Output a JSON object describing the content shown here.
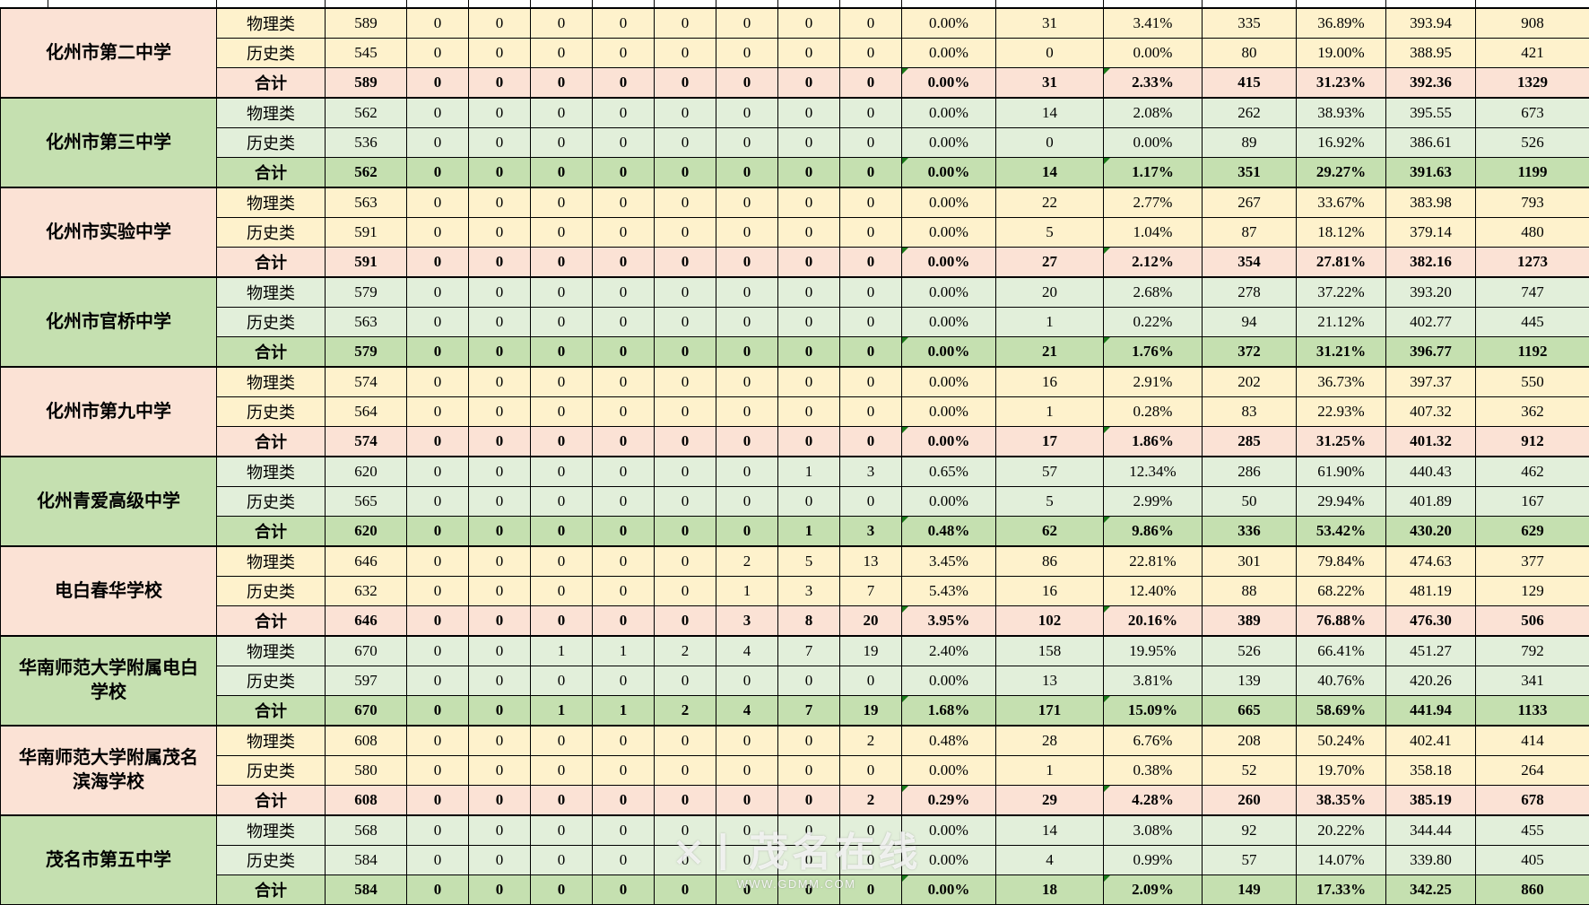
{
  "watermark": {
    "logo_mark": "✕〡",
    "logo_text": "茂名在线",
    "url_text": "WWW.GDMM.COM"
  },
  "colors": {
    "pink_band": "#FBE2D5",
    "yellow_row": "#FEF2CC",
    "green_band": "#C5E0B0",
    "green_row": "#E2EFDA",
    "flag_green": "#1a7a1a",
    "border": "#000000"
  },
  "table": {
    "schools": [
      {
        "name": "化州市第二中学",
        "theme": "pink",
        "rows": [
          {
            "category": "物理类",
            "values": [
              "589",
              "0",
              "0",
              "0",
              "0",
              "0",
              "0",
              "0",
              "0",
              "0.00%",
              "31",
              "3.41%",
              "335",
              "36.89%",
              "393.94",
              "908"
            ]
          },
          {
            "category": "历史类",
            "values": [
              "545",
              "0",
              "0",
              "0",
              "0",
              "0",
              "0",
              "0",
              "0",
              "0.00%",
              "0",
              "0.00%",
              "80",
              "19.00%",
              "388.95",
              "421"
            ]
          },
          {
            "category": "合计",
            "total": true,
            "values": [
              "589",
              "0",
              "0",
              "0",
              "0",
              "0",
              "0",
              "0",
              "0",
              "0.00%",
              "31",
              "2.33%",
              "415",
              "31.23%",
              "392.36",
              "1329"
            ]
          }
        ]
      },
      {
        "name": "化州市第三中学",
        "theme": "green",
        "rows": [
          {
            "category": "物理类",
            "values": [
              "562",
              "0",
              "0",
              "0",
              "0",
              "0",
              "0",
              "0",
              "0",
              "0.00%",
              "14",
              "2.08%",
              "262",
              "38.93%",
              "395.55",
              "673"
            ]
          },
          {
            "category": "历史类",
            "values": [
              "536",
              "0",
              "0",
              "0",
              "0",
              "0",
              "0",
              "0",
              "0",
              "0.00%",
              "0",
              "0.00%",
              "89",
              "16.92%",
              "386.61",
              "526"
            ]
          },
          {
            "category": "合计",
            "total": true,
            "values": [
              "562",
              "0",
              "0",
              "0",
              "0",
              "0",
              "0",
              "0",
              "0",
              "0.00%",
              "14",
              "1.17%",
              "351",
              "29.27%",
              "391.63",
              "1199"
            ]
          }
        ]
      },
      {
        "name": "化州市实验中学",
        "theme": "pink",
        "rows": [
          {
            "category": "物理类",
            "values": [
              "563",
              "0",
              "0",
              "0",
              "0",
              "0",
              "0",
              "0",
              "0",
              "0.00%",
              "22",
              "2.77%",
              "267",
              "33.67%",
              "383.98",
              "793"
            ]
          },
          {
            "category": "历史类",
            "values": [
              "591",
              "0",
              "0",
              "0",
              "0",
              "0",
              "0",
              "0",
              "0",
              "0.00%",
              "5",
              "1.04%",
              "87",
              "18.12%",
              "379.14",
              "480"
            ]
          },
          {
            "category": "合计",
            "total": true,
            "values": [
              "591",
              "0",
              "0",
              "0",
              "0",
              "0",
              "0",
              "0",
              "0",
              "0.00%",
              "27",
              "2.12%",
              "354",
              "27.81%",
              "382.16",
              "1273"
            ]
          }
        ]
      },
      {
        "name": "化州市官桥中学",
        "theme": "green",
        "rows": [
          {
            "category": "物理类",
            "values": [
              "579",
              "0",
              "0",
              "0",
              "0",
              "0",
              "0",
              "0",
              "0",
              "0.00%",
              "20",
              "2.68%",
              "278",
              "37.22%",
              "393.20",
              "747"
            ]
          },
          {
            "category": "历史类",
            "values": [
              "563",
              "0",
              "0",
              "0",
              "0",
              "0",
              "0",
              "0",
              "0",
              "0.00%",
              "1",
              "0.22%",
              "94",
              "21.12%",
              "402.77",
              "445"
            ]
          },
          {
            "category": "合计",
            "total": true,
            "values": [
              "579",
              "0",
              "0",
              "0",
              "0",
              "0",
              "0",
              "0",
              "0",
              "0.00%",
              "21",
              "1.76%",
              "372",
              "31.21%",
              "396.77",
              "1192"
            ]
          }
        ]
      },
      {
        "name": "化州市第九中学",
        "theme": "pink",
        "rows": [
          {
            "category": "物理类",
            "values": [
              "574",
              "0",
              "0",
              "0",
              "0",
              "0",
              "0",
              "0",
              "0",
              "0.00%",
              "16",
              "2.91%",
              "202",
              "36.73%",
              "397.37",
              "550"
            ]
          },
          {
            "category": "历史类",
            "values": [
              "564",
              "0",
              "0",
              "0",
              "0",
              "0",
              "0",
              "0",
              "0",
              "0.00%",
              "1",
              "0.28%",
              "83",
              "22.93%",
              "407.32",
              "362"
            ]
          },
          {
            "category": "合计",
            "total": true,
            "values": [
              "574",
              "0",
              "0",
              "0",
              "0",
              "0",
              "0",
              "0",
              "0",
              "0.00%",
              "17",
              "1.86%",
              "285",
              "31.25%",
              "401.32",
              "912"
            ]
          }
        ]
      },
      {
        "name": "化州青爱高级中学",
        "theme": "green",
        "rows": [
          {
            "category": "物理类",
            "values": [
              "620",
              "0",
              "0",
              "0",
              "0",
              "0",
              "0",
              "1",
              "3",
              "0.65%",
              "57",
              "12.34%",
              "286",
              "61.90%",
              "440.43",
              "462"
            ]
          },
          {
            "category": "历史类",
            "values": [
              "565",
              "0",
              "0",
              "0",
              "0",
              "0",
              "0",
              "0",
              "0",
              "0.00%",
              "5",
              "2.99%",
              "50",
              "29.94%",
              "401.89",
              "167"
            ]
          },
          {
            "category": "合计",
            "total": true,
            "values": [
              "620",
              "0",
              "0",
              "0",
              "0",
              "0",
              "0",
              "1",
              "3",
              "0.48%",
              "62",
              "9.86%",
              "336",
              "53.42%",
              "430.20",
              "629"
            ]
          }
        ]
      },
      {
        "name": "电白春华学校",
        "theme": "pink",
        "rows": [
          {
            "category": "物理类",
            "values": [
              "646",
              "0",
              "0",
              "0",
              "0",
              "0",
              "2",
              "5",
              "13",
              "3.45%",
              "86",
              "22.81%",
              "301",
              "79.84%",
              "474.63",
              "377"
            ]
          },
          {
            "category": "历史类",
            "values": [
              "632",
              "0",
              "0",
              "0",
              "0",
              "0",
              "1",
              "3",
              "7",
              "5.43%",
              "16",
              "12.40%",
              "88",
              "68.22%",
              "481.19",
              "129"
            ]
          },
          {
            "category": "合计",
            "total": true,
            "values": [
              "646",
              "0",
              "0",
              "0",
              "0",
              "0",
              "3",
              "8",
              "20",
              "3.95%",
              "102",
              "20.16%",
              "389",
              "76.88%",
              "476.30",
              "506"
            ]
          }
        ]
      },
      {
        "name": "华南师范大学附属电白学校",
        "theme": "green",
        "rows": [
          {
            "category": "物理类",
            "values": [
              "670",
              "0",
              "0",
              "1",
              "1",
              "2",
              "4",
              "7",
              "19",
              "2.40%",
              "158",
              "19.95%",
              "526",
              "66.41%",
              "451.27",
              "792"
            ]
          },
          {
            "category": "历史类",
            "values": [
              "597",
              "0",
              "0",
              "0",
              "0",
              "0",
              "0",
              "0",
              "0",
              "0.00%",
              "13",
              "3.81%",
              "139",
              "40.76%",
              "420.26",
              "341"
            ]
          },
          {
            "category": "合计",
            "total": true,
            "values": [
              "670",
              "0",
              "0",
              "1",
              "1",
              "2",
              "4",
              "7",
              "19",
              "1.68%",
              "171",
              "15.09%",
              "665",
              "58.69%",
              "441.94",
              "1133"
            ]
          }
        ]
      },
      {
        "name": "华南师范大学附属茂名滨海学校",
        "theme": "pink",
        "rows": [
          {
            "category": "物理类",
            "values": [
              "608",
              "0",
              "0",
              "0",
              "0",
              "0",
              "0",
              "0",
              "2",
              "0.48%",
              "28",
              "6.76%",
              "208",
              "50.24%",
              "402.41",
              "414"
            ]
          },
          {
            "category": "历史类",
            "values": [
              "580",
              "0",
              "0",
              "0",
              "0",
              "0",
              "0",
              "0",
              "0",
              "0.00%",
              "1",
              "0.38%",
              "52",
              "19.70%",
              "358.18",
              "264"
            ]
          },
          {
            "category": "合计",
            "total": true,
            "values": [
              "608",
              "0",
              "0",
              "0",
              "0",
              "0",
              "0",
              "0",
              "2",
              "0.29%",
              "29",
              "4.28%",
              "260",
              "38.35%",
              "385.19",
              "678"
            ]
          }
        ]
      },
      {
        "name": "茂名市第五中学",
        "theme": "green",
        "rows": [
          {
            "category": "物理类",
            "values": [
              "568",
              "0",
              "0",
              "0",
              "0",
              "0",
              "0",
              "0",
              "0",
              "0.00%",
              "14",
              "3.08%",
              "92",
              "20.22%",
              "344.44",
              "455"
            ]
          },
          {
            "category": "历史类",
            "values": [
              "584",
              "0",
              "0",
              "0",
              "0",
              "0",
              "0",
              "0",
              "0",
              "0.00%",
              "4",
              "0.99%",
              "57",
              "14.07%",
              "339.80",
              "405"
            ]
          },
          {
            "category": "合计",
            "total": true,
            "values": [
              "584",
              "0",
              "0",
              "0",
              "0",
              "0",
              "0",
              "0",
              "0",
              "0.00%",
              "18",
              "2.09%",
              "149",
              "17.33%",
              "342.25",
              "860"
            ]
          }
        ]
      }
    ]
  }
}
